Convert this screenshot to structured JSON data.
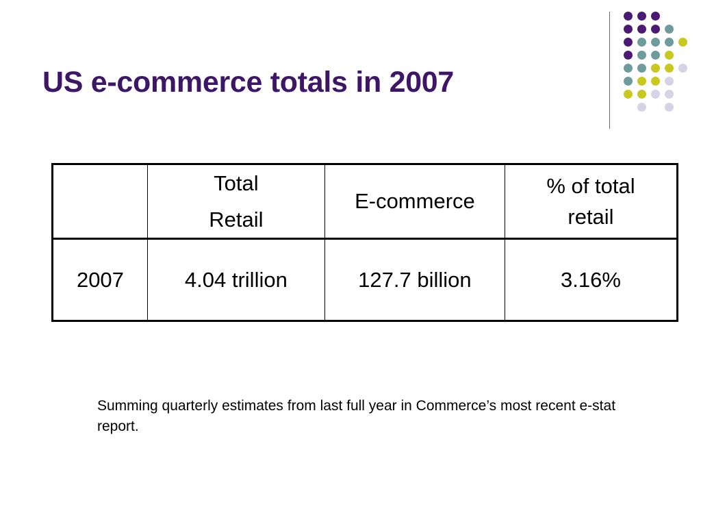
{
  "slide": {
    "title": "US e-commerce totals in 2007",
    "footnote": "Summing quarterly estimates from last full year in Commerce’s most recent e-stat report."
  },
  "table": {
    "headers": {
      "year": "",
      "total_retail_line1": "Total",
      "total_retail_line2": "Retail",
      "ecommerce": "E-commerce",
      "pct_line1": "% of total",
      "pct_line2": "retail"
    },
    "rows": [
      {
        "year": "2007",
        "total_retail": "4.04 trillion",
        "ecommerce": "127.7 billion",
        "pct": "3.16%"
      }
    ]
  },
  "theme": {
    "title_color": "#3d1766",
    "dot_colors": {
      "purple": "#4b1a74",
      "teal": "#6e9c9c",
      "olive": "#c8c81e",
      "lavender": "#d4d4e6"
    },
    "decoration_icon": "dot-grid-decoration"
  }
}
